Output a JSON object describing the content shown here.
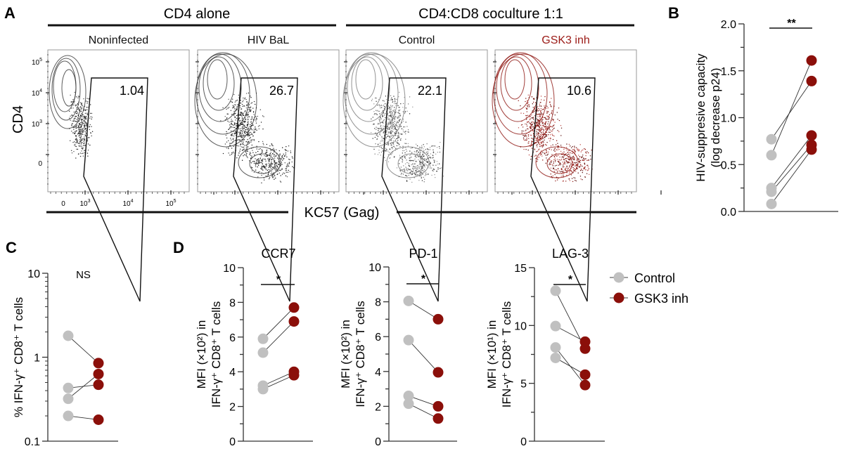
{
  "colors": {
    "control": "#c0c0c0",
    "gsk3": "#8b0f0a",
    "axis": "#222222",
    "gsk3_text": "#9b1b17"
  },
  "panel_a": {
    "letter": "A",
    "group_labels": [
      "CD4 alone",
      "CD4:CD8 coculture 1:1"
    ],
    "plots": [
      {
        "title": "Noninfected",
        "gate_value": "1.04",
        "color": "black"
      },
      {
        "title": "HIV BaL",
        "gate_value": "26.7",
        "color": "black"
      },
      {
        "title": "Control",
        "gate_value": "22.1",
        "color": "grey"
      },
      {
        "title": "GSK3 inh",
        "gate_value": "10.6",
        "color": "red"
      }
    ],
    "y_label": "CD4",
    "x_label": "KC57 (Gag)",
    "y_ticks": [
      "10^5",
      "10^4",
      "10^3",
      "0"
    ],
    "x_ticks": [
      "0",
      "10^3",
      "10^4",
      "10^5"
    ]
  },
  "legend": {
    "items": [
      {
        "label": "Control",
        "series": "control"
      },
      {
        "label": "GSK3 inh",
        "series": "gsk3"
      }
    ]
  },
  "chart_data": [
    {
      "panel": "B",
      "type": "scatter",
      "title": "",
      "ylabel": "HIV-suppresive capacity (log decrease p24)",
      "ylim": [
        0,
        2.0
      ],
      "yticks": [
        0,
        0.5,
        1.0,
        1.5,
        2.0
      ],
      "ytick_labels": [
        "0.0",
        "0.5",
        "1.0",
        "1.5",
        "2.0"
      ],
      "scale": "linear",
      "significance": "**",
      "series": [
        {
          "name": "Control",
          "values": [
            0.77,
            0.6,
            0.25,
            0.21,
            0.08
          ]
        },
        {
          "name": "GSK3 inh",
          "values": [
            1.39,
            1.61,
            0.81,
            0.71,
            0.66
          ]
        }
      ]
    },
    {
      "panel": "C",
      "type": "scatter",
      "title": "",
      "ylabel": "% IFN-γ⁺ CD8⁺ T cells",
      "ylim": [
        0.1,
        10
      ],
      "yticks": [
        0.1,
        1,
        10
      ],
      "ytick_labels": [
        "0.1",
        "1",
        "10"
      ],
      "scale": "log",
      "significance": "NS",
      "series": [
        {
          "name": "Control",
          "values": [
            1.8,
            0.43,
            0.32,
            0.2
          ]
        },
        {
          "name": "GSK3 inh",
          "values": [
            0.85,
            0.47,
            0.63,
            0.18
          ]
        }
      ]
    },
    {
      "panel": "D",
      "type": "scatter",
      "title": "CCR7",
      "ylabel": "MFI (×10²) in IFN-γ⁺ CD8⁺ T cells",
      "ylim": [
        0,
        10
      ],
      "yticks": [
        0,
        2,
        4,
        6,
        8,
        10
      ],
      "ytick_labels": [
        "0",
        "2",
        "4",
        "6",
        "8",
        "10"
      ],
      "scale": "linear",
      "significance": "*",
      "series": [
        {
          "name": "Control",
          "values": [
            5.9,
            5.1,
            3.2,
            3.0
          ]
        },
        {
          "name": "GSK3 inh",
          "values": [
            7.7,
            6.9,
            4.0,
            3.8
          ]
        }
      ]
    },
    {
      "panel": "D",
      "type": "scatter",
      "title": "PD-1",
      "ylabel": "MFI (×10²) in IFN-γ⁺ CD8⁺ T cells",
      "ylim": [
        0,
        10
      ],
      "yticks": [
        0,
        2,
        4,
        6,
        8,
        10
      ],
      "ytick_labels": [
        "0",
        "2",
        "4",
        "6",
        "8",
        "10"
      ],
      "scale": "linear",
      "significance": "*",
      "series": [
        {
          "name": "Control",
          "values": [
            8.05,
            5.8,
            2.6,
            2.15
          ]
        },
        {
          "name": "GSK3 inh",
          "values": [
            7.0,
            3.95,
            2.0,
            1.3
          ]
        }
      ]
    },
    {
      "panel": "D",
      "type": "scatter",
      "title": "LAG-3",
      "ylabel": "MFI (×10¹) in IFN-γ⁺ CD8⁺ T cells",
      "ylim": [
        0,
        15
      ],
      "yticks": [
        0,
        5,
        10,
        15
      ],
      "ytick_labels": [
        "0",
        "5",
        "10",
        "15"
      ],
      "scale": "linear",
      "significance": "*",
      "series": [
        {
          "name": "Control",
          "values": [
            13.0,
            9.95,
            8.1,
            7.2
          ]
        },
        {
          "name": "GSK3 inh",
          "values": [
            8.0,
            8.6,
            4.85,
            5.75
          ]
        }
      ]
    }
  ],
  "panel_letters": {
    "b": "B",
    "c": "C",
    "d": "D"
  }
}
